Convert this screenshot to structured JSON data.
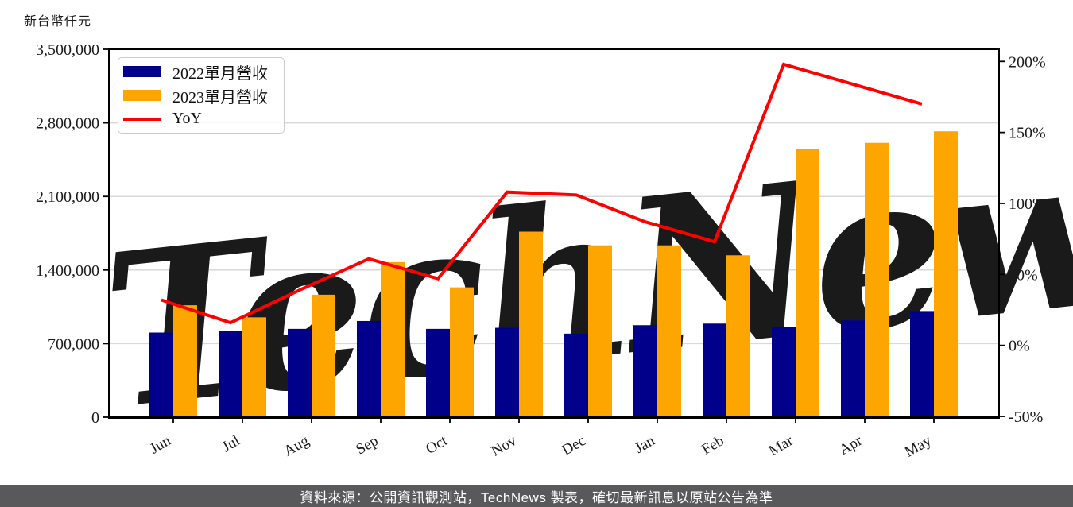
{
  "y_axis_title": "新台幣仟元",
  "legend": {
    "items": [
      {
        "label": "2022單月營收",
        "type": "bar",
        "color": "#00008b"
      },
      {
        "label": "2023單月營收",
        "type": "bar",
        "color": "#ffa500"
      },
      {
        "label": "YoY",
        "type": "line",
        "color": "#ff0000"
      }
    ]
  },
  "watermark": {
    "text": "TechNews",
    "color_main": "#ebebeb",
    "color_accent": "#f7d6d6"
  },
  "footer": {
    "text": "資料來源：公開資訊觀測站，TechNews 製表，確切最新訊息以原站公告為準",
    "bg": "#59595b",
    "text_color": "#ffffff"
  },
  "chart_data": {
    "type": "bar",
    "subtype": "grouped-bars-with-line",
    "title": "新台幣仟元",
    "categories": [
      "Jun",
      "Jul",
      "Aug",
      "Sep",
      "Oct",
      "Nov",
      "Dec",
      "Jan",
      "Feb",
      "Mar",
      "Apr",
      "May"
    ],
    "series": [
      {
        "name": "2022單月營收",
        "type": "bar",
        "axis": "left",
        "color": "#00008b",
        "values": [
          805000,
          820000,
          840000,
          915000,
          840000,
          850000,
          795000,
          875000,
          890000,
          855000,
          920000,
          1010000
        ]
      },
      {
        "name": "2023單月營收",
        "type": "bar",
        "axis": "left",
        "color": "#ffa500",
        "values": [
          1065000,
          950000,
          1165000,
          1475000,
          1235000,
          1765000,
          1635000,
          1635000,
          1540000,
          2550000,
          2610000,
          2720000
        ]
      },
      {
        "name": "YoY",
        "type": "line",
        "axis": "right",
        "color": "#ff0000",
        "unit": "%",
        "values": [
          32,
          16,
          39,
          61,
          47,
          108,
          106,
          87,
          73,
          198,
          184,
          170
        ]
      }
    ],
    "left_axis": {
      "label": "新台幣仟元",
      "min": 0,
      "max": 3500000,
      "ticks": [
        {
          "value": 0,
          "label": "0"
        },
        {
          "value": 700000,
          "label": "700,000"
        },
        {
          "value": 1400000,
          "label": "1,400,000"
        },
        {
          "value": 2100000,
          "label": "2,100,000"
        },
        {
          "value": 2800000,
          "label": "2,800,000"
        },
        {
          "value": 3500000,
          "label": "3,500,000"
        }
      ]
    },
    "right_axis": {
      "min": -50,
      "max": 200,
      "ticks": [
        {
          "value": -50,
          "label": "-50%"
        },
        {
          "value": 0,
          "label": "0%"
        },
        {
          "value": 50,
          "label": "50%"
        },
        {
          "value": 100,
          "label": "100%"
        },
        {
          "value": 150,
          "label": "150%"
        },
        {
          "value": 200,
          "label": "200%"
        }
      ]
    },
    "grid": true,
    "grid_color": "#d9d9d9",
    "legend_position": "upper-left"
  }
}
